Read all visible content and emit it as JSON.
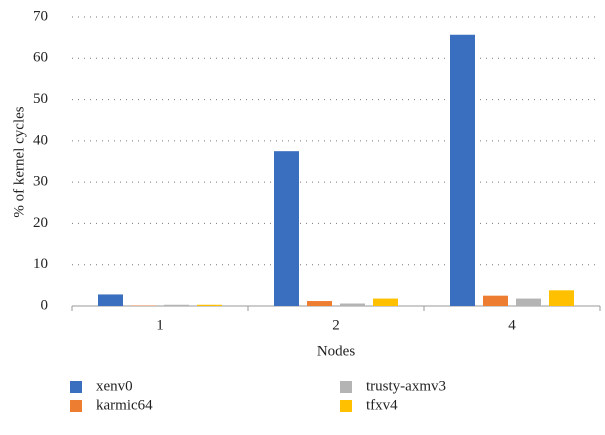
{
  "chart_data": {
    "type": "bar",
    "categories": [
      "1",
      "2",
      "4"
    ],
    "series": [
      {
        "name": "xenv0",
        "color": "#3a6fbf",
        "values": [
          2.8,
          37.5,
          65.7
        ]
      },
      {
        "name": "karmic64",
        "color": "#ed7d31",
        "values": [
          0.1,
          1.2,
          2.5
        ]
      },
      {
        "name": "trusty-axmv3",
        "color": "#b4b4b4",
        "values": [
          0.3,
          0.6,
          1.8
        ]
      },
      {
        "name": "tfxv4",
        "color": "#ffc000",
        "values": [
          0.3,
          1.8,
          3.8
        ]
      }
    ],
    "x_label": "Nodes",
    "y_label": "% of kernel cycles",
    "ylim": [
      0,
      70
    ],
    "yticks": [
      0,
      10,
      20,
      30,
      40,
      50,
      60,
      70
    ],
    "grid": true
  }
}
